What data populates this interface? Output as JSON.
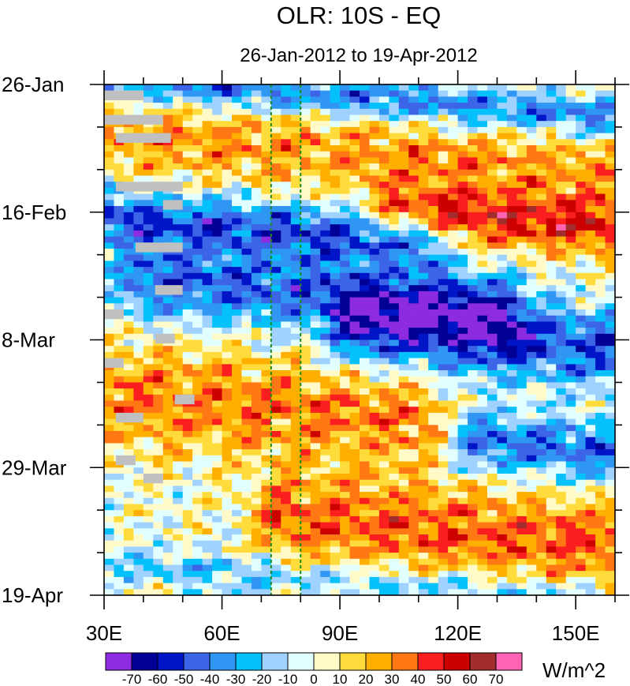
{
  "chart_data": {
    "type": "heatmap",
    "title": "OLR: 10S - EQ",
    "subtitle": "26-Jan-2012 to 19-Apr-2012",
    "x_axis": {
      "range": [
        30,
        160
      ],
      "tick_values": [
        30,
        60,
        90,
        120,
        150
      ],
      "tick_labels": [
        "30E",
        "60E",
        "90E",
        "120E",
        "150E"
      ],
      "minor_step": 10
    },
    "y_axis": {
      "range_days": [
        0,
        84
      ],
      "tick_days": [
        0,
        21,
        42,
        63,
        84
      ],
      "tick_labels": [
        "26-Jan",
        "16-Feb",
        "8-Mar",
        "29-Mar",
        "19-Apr"
      ],
      "minor_step_days": 7
    },
    "reference_lines_lon": [
      72.5,
      80
    ],
    "colorbar": {
      "unit": "W/m^2",
      "levels": [
        -70,
        -60,
        -50,
        -40,
        -30,
        -20,
        -10,
        0,
        10,
        20,
        30,
        40,
        50,
        60,
        70
      ],
      "level_labels": [
        "-70",
        "-60",
        "-50",
        "-40",
        "-30",
        "-20",
        "-10",
        "0",
        "10",
        "20",
        "30",
        "40",
        "50",
        "60",
        "70"
      ],
      "colors": [
        "#8c2be0",
        "#000096",
        "#0014c8",
        "#3c64e6",
        "#2f96f4",
        "#05c1fb",
        "#a0d2ff",
        "#e1ffff",
        "#fffac8",
        "#ffdc3c",
        "#ffaf00",
        "#ff7814",
        "#fa1e1e",
        "#cd0000",
        "#a12d2d",
        "#ff64b4"
      ]
    },
    "anomaly_regimes": [
      {
        "day_start": 0,
        "day_end": 5,
        "lon_start": 30,
        "lon_end": 160,
        "lon_center": 100,
        "mean": -40,
        "phase": "convective"
      },
      {
        "day_start": 5,
        "day_end": 18,
        "lon_start": 30,
        "lon_end": 160,
        "lon_center": 95,
        "mean": 28,
        "phase": "suppressed"
      },
      {
        "day_start": 20,
        "day_end": 28,
        "lon_start": 30,
        "lon_end": 110,
        "lon_center": 75,
        "mean": -48,
        "phase": "convective"
      },
      {
        "day_start": 19,
        "day_end": 27,
        "lon_start": 105,
        "lon_end": 160,
        "lon_center": 145,
        "mean": 45,
        "phase": "suppressed"
      },
      {
        "day_start": 29,
        "day_end": 40,
        "lon_start": 40,
        "lon_end": 130,
        "lon_center": 85,
        "mean": -45,
        "phase": "convective"
      },
      {
        "day_start": 36,
        "day_end": 48,
        "lon_start": 95,
        "lon_end": 160,
        "lon_center": 130,
        "mean": -48,
        "phase": "convective"
      },
      {
        "day_start": 45,
        "day_end": 62,
        "lon_start": 30,
        "lon_end": 110,
        "lon_center": 75,
        "mean": 33,
        "phase": "suppressed"
      },
      {
        "day_start": 56,
        "day_end": 64,
        "lon_start": 125,
        "lon_end": 160,
        "lon_center": 150,
        "mean": -42,
        "phase": "convective"
      },
      {
        "day_start": 66,
        "day_end": 80,
        "lon_start": 75,
        "lon_end": 160,
        "lon_center": 110,
        "mean": 38,
        "phase": "suppressed"
      },
      {
        "day_start": 80,
        "day_end": 84,
        "lon_start": 30,
        "lon_end": 160,
        "lon_center": 95,
        "mean": -20,
        "phase": "convective"
      }
    ],
    "missing_data": [
      {
        "day": 1,
        "lon_start": 30,
        "lon_end": 40
      },
      {
        "day": 5,
        "lon_start": 30,
        "lon_end": 45
      },
      {
        "day": 8,
        "lon_start": 33,
        "lon_end": 47
      },
      {
        "day": 16,
        "lon_start": 33,
        "lon_end": 50
      },
      {
        "day": 19,
        "lon_start": 45,
        "lon_end": 50
      },
      {
        "day": 26,
        "lon_start": 38,
        "lon_end": 50
      },
      {
        "day": 33,
        "lon_start": 43,
        "lon_end": 50
      },
      {
        "day": 37,
        "lon_start": 30,
        "lon_end": 35
      },
      {
        "day": 41,
        "lon_start": 43,
        "lon_end": 48
      },
      {
        "day": 45,
        "lon_start": 30,
        "lon_end": 35
      },
      {
        "day": 51,
        "lon_start": 48,
        "lon_end": 53
      },
      {
        "day": 54,
        "lon_start": 33,
        "lon_end": 40
      },
      {
        "day": 61,
        "lon_start": 33,
        "lon_end": 38
      },
      {
        "day": 64,
        "lon_start": 40,
        "lon_end": 45
      }
    ]
  }
}
